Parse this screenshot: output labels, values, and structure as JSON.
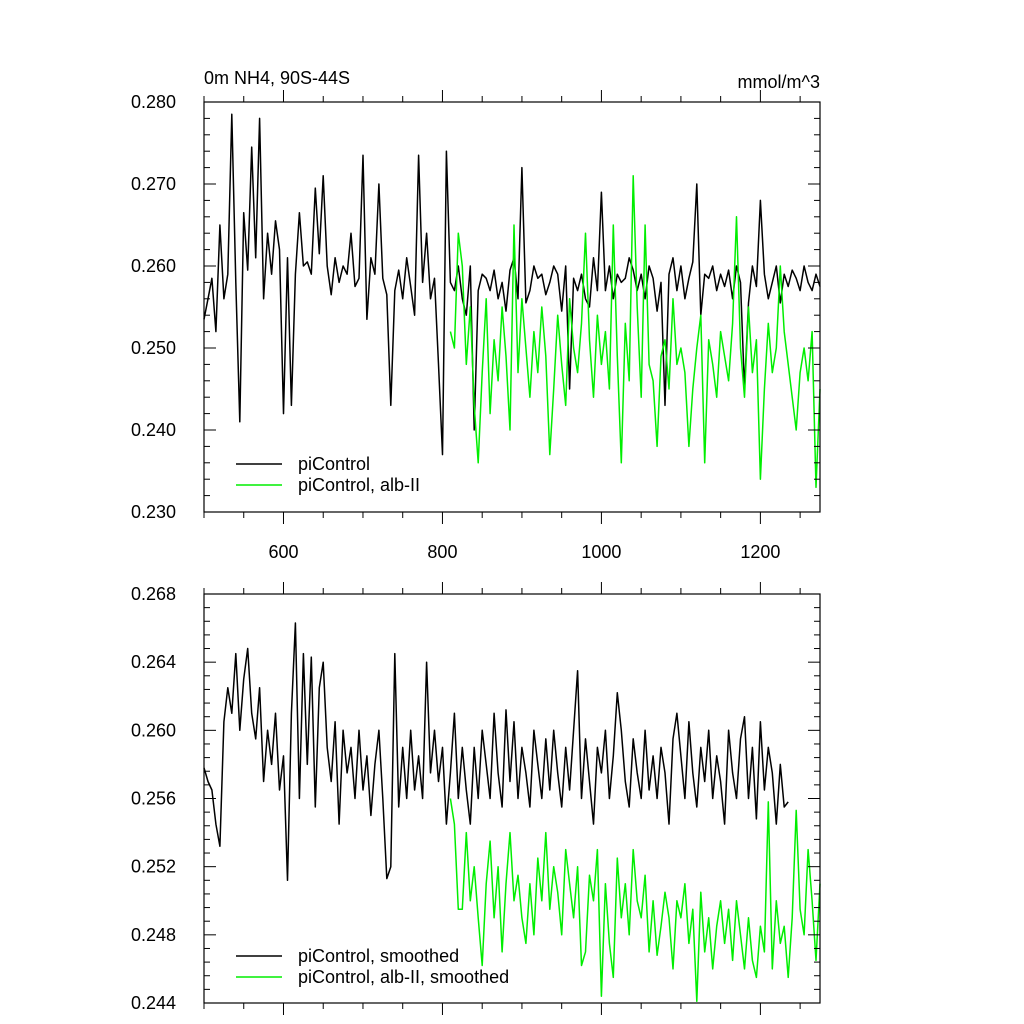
{
  "figure": {
    "title_left": "0m NH4, 90S-44S",
    "title_right": "mmol/m^3"
  },
  "colors": {
    "piControl": "#000000",
    "alb_II": "#00ee00",
    "axis": "#000000",
    "background": "#ffffff"
  },
  "chart_data": [
    {
      "type": "line",
      "panel": "top",
      "title": "0m NH4, 90S-44S",
      "units": "mmol/m^3",
      "xlim": [
        500,
        1275
      ],
      "ylim": [
        0.23,
        0.28
      ],
      "x_ticks": [
        600,
        800,
        1000,
        1200
      ],
      "x_tick_labels": [
        "600",
        "800",
        "1000",
        "1200"
      ],
      "y_ticks": [
        0.23,
        0.24,
        0.25,
        0.26,
        0.27,
        0.28
      ],
      "y_tick_labels": [
        "0.230",
        "0.240",
        "0.250",
        "0.260",
        "0.270",
        "0.280"
      ],
      "grid": false,
      "legend_position": "bottom-left",
      "series": [
        {
          "name": "piControl",
          "color_key": "piControl",
          "x_start": 500,
          "x_step": 5,
          "values": [
            0.2535,
            0.256,
            0.2585,
            0.252,
            0.265,
            0.256,
            0.259,
            0.2625,
            0.258,
            0.2655,
            0.2665,
            0.2595,
            0.27,
            0.261,
            0.263,
            0.256,
            0.264,
            0.259,
            0.2655,
            0.262,
            0.2575,
            0.261,
            0.262,
            0.259,
            0.2665,
            0.26,
            0.2605,
            0.259,
            0.2695,
            0.2615,
            0.258,
            0.26,
            0.2565,
            0.261,
            0.258,
            0.26,
            0.259,
            0.264,
            0.2575,
            0.2585,
            0.26,
            0.2535,
            0.261,
            0.259,
            0.2575,
            0.2585,
            0.2565,
            0.2605,
            0.257,
            0.2595,
            0.256,
            0.261,
            0.2575,
            0.254,
            0.2595,
            0.258,
            0.264,
            0.256,
            0.2585,
            0.2555,
            0.261,
            0.2575,
            0.258,
            0.257,
            0.26,
            0.256,
            0.254,
            0.26,
            0.2605,
            0.257,
            0.259,
            0.2585,
            0.257,
            0.2595,
            0.256,
            0.258,
            0.2545,
            0.2595,
            0.261,
            0.256,
            0.259,
            0.2555,
            0.257,
            0.26,
            0.2585,
            0.259,
            0.2565,
            0.258,
            0.26,
            0.259,
            0.2545,
            0.26,
            0.258,
            0.2585,
            0.257,
            0.259,
            0.256,
            0.255,
            0.261,
            0.257,
            0.258,
            0.257,
            0.26,
            0.256,
            0.259,
            0.258,
            0.2585,
            0.261,
            0.2595,
            0.257,
            0.259,
            0.256,
            0.26,
            0.2585,
            0.2545,
            0.258,
            0.2575,
            0.259,
            0.261,
            0.257,
            0.26,
            0.256,
            0.2585,
            0.2605,
            0.2575,
            0.254,
            0.259,
            0.2585,
            0.26,
            0.257,
            0.259,
            0.2575,
            0.2595,
            0.256,
            0.26,
            0.258,
            0.2585,
            0.2555,
            0.26,
            0.2575,
            0.2585,
            0.259,
            0.256,
            0.258,
            0.26,
            0.2555,
            0.259,
            0.2575,
            0.2595,
            0.2585,
            0.257,
            0.26,
            0.258,
            0.257,
            0.259,
            0.2575,
            0.256,
            0.26,
            0.2585,
            0.2565,
            0.259,
            0.258,
            0.2565,
            0.26,
            0.258
          ],
          "spike_overrides": [
            [
              535,
              0.2785
            ],
            [
              545,
              0.241
            ],
            [
              560,
              0.2745
            ],
            [
              570,
              0.278
            ],
            [
              610,
              0.243
            ],
            [
              650,
              0.271
            ],
            [
              700,
              0.2735
            ],
            [
              720,
              0.27
            ],
            [
              735,
              0.243
            ],
            [
              770,
              0.2735
            ],
            [
              795,
              0.248
            ],
            [
              800,
              0.237
            ],
            [
              805,
              0.274
            ],
            [
              600,
              0.242
            ],
            [
              840,
              0.24
            ],
            [
              900,
              0.272
            ],
            [
              960,
              0.245
            ],
            [
              1000,
              0.269
            ],
            [
              1080,
              0.243
            ],
            [
              1120,
              0.27
            ],
            [
              1180,
              0.245
            ],
            [
              1200,
              0.268
            ]
          ]
        },
        {
          "name": "piControl, alb-II",
          "color_key": "alb_II",
          "x_start": 810,
          "x_step": 5,
          "values": [
            0.252,
            0.25,
            0.245,
            0.26,
            0.248,
            0.255,
            0.243,
            0.254,
            0.247,
            0.256,
            0.242,
            0.251,
            0.246,
            0.255,
            0.249,
            0.24,
            0.253,
            0.247,
            0.256,
            0.25,
            0.244,
            0.252,
            0.247,
            0.255,
            0.249,
            0.252,
            0.245,
            0.254,
            0.248,
            0.243,
            0.256,
            0.25,
            0.247,
            0.253,
            0.246,
            0.251,
            0.244,
            0.254,
            0.248,
            0.252,
            0.245,
            0.256,
            0.249,
            0.247,
            0.253,
            0.246,
            0.25,
            0.255,
            0.244,
            0.252,
            0.248,
            0.246,
            0.254,
            0.249,
            0.251,
            0.245,
            0.256,
            0.248,
            0.25,
            0.247,
            0.253,
            0.245,
            0.25,
            0.254,
            0.246,
            0.251,
            0.248,
            0.244,
            0.252,
            0.249,
            0.246,
            0.253,
            0.248,
            0.25,
            0.244,
            0.255,
            0.247,
            0.251,
            0.249,
            0.245,
            0.253,
            0.247,
            0.25,
            0.246,
            0.252,
            0.248,
            0.244,
            0.251,
            0.247,
            0.25,
            0.246,
            0.252,
            0.248,
            0.245,
            0.25,
            0.247,
            0.253,
            0.246,
            0.249,
            0.251,
            0.245,
            0.25,
            0.247,
            0.253,
            0.248,
            0.246,
            0.251,
            0.244,
            0.25,
            0.247,
            0.252,
            0.248,
            0.246,
            0.251,
            0.247,
            0.244,
            0.252,
            0.249,
            0.246,
            0.25,
            0.248,
            0.243,
            0.251,
            0.247,
            0.249,
            0.245,
            0.253,
            0.248,
            0.246,
            0.25,
            0.252,
            0.247,
            0.249,
            0.244,
            0.252,
            0.248,
            0.246,
            0.25,
            0.247,
            0.253,
            0.249,
            0.245,
            0.251,
            0.247,
            0.25,
            0.246,
            0.252,
            0.248,
            0.244,
            0.25,
            0.247,
            0.252,
            0.248,
            0.246,
            0.25,
            0.247,
            0.253,
            0.249
          ],
          "spike_overrides": [
            [
              820,
              0.264
            ],
            [
              845,
              0.236
            ],
            [
              890,
              0.265
            ],
            [
              935,
              0.237
            ],
            [
              980,
              0.264
            ],
            [
              1015,
              0.265
            ],
            [
              1025,
              0.236
            ],
            [
              1040,
              0.271
            ],
            [
              1055,
              0.265
            ],
            [
              1070,
              0.238
            ],
            [
              1110,
              0.238
            ],
            [
              1130,
              0.236
            ],
            [
              1170,
              0.266
            ],
            [
              1200,
              0.234
            ],
            [
              1225,
              0.26
            ],
            [
              1245,
              0.24
            ],
            [
              1270,
              0.233
            ]
          ]
        }
      ]
    },
    {
      "type": "line",
      "panel": "bottom",
      "xlim": [
        500,
        1275
      ],
      "ylim": [
        0.244,
        0.268
      ],
      "x_ticks": [
        600,
        800,
        1000,
        1200
      ],
      "x_tick_labels": [],
      "y_ticks": [
        0.244,
        0.248,
        0.252,
        0.256,
        0.26,
        0.264,
        0.268
      ],
      "y_tick_labels": [
        "0.244",
        "0.248",
        "0.252",
        "0.256",
        "0.260",
        "0.264",
        "0.268"
      ],
      "grid": false,
      "legend_position": "bottom-left",
      "series": [
        {
          "name": "piControl, smoothed",
          "color_key": "piControl",
          "x_start": 500,
          "x_step": 5,
          "values": [
            0.2578,
            0.257,
            0.256,
            0.2545,
            0.258,
            0.2605,
            0.2625,
            0.261,
            0.264,
            0.26,
            0.263,
            0.2585,
            0.261,
            0.2595,
            0.2625,
            0.257,
            0.26,
            0.258,
            0.261,
            0.2565,
            0.2585,
            0.256,
            0.261,
            0.253,
            0.256,
            0.2645,
            0.258,
            0.261,
            0.2555,
            0.2625,
            0.264,
            0.259,
            0.257,
            0.2605,
            0.2545,
            0.26,
            0.2575,
            0.259,
            0.256,
            0.26,
            0.2565,
            0.2585,
            0.255,
            0.258,
            0.26,
            0.256,
            0.2595,
            0.252,
            0.257,
            0.2555,
            0.259,
            0.256,
            0.26,
            0.2565,
            0.2585,
            0.256,
            0.264,
            0.2575,
            0.26,
            0.257,
            0.259,
            0.2545,
            0.2575,
            0.261,
            0.256,
            0.259,
            0.2565,
            0.2545,
            0.259,
            0.256,
            0.26,
            0.258,
            0.256,
            0.261,
            0.2575,
            0.2555,
            0.259,
            0.257,
            0.2605,
            0.256,
            0.259,
            0.2575,
            0.2555,
            0.26,
            0.258,
            0.256,
            0.2595,
            0.2565,
            0.26,
            0.2575,
            0.2555,
            0.259,
            0.2565,
            0.26,
            0.258,
            0.256,
            0.2595,
            0.257,
            0.2545,
            0.259,
            0.2575,
            0.26,
            0.256,
            0.2585,
            0.2565,
            0.26,
            0.257,
            0.2555,
            0.2595,
            0.2575,
            0.256,
            0.26,
            0.2565,
            0.2585,
            0.256,
            0.259,
            0.2575,
            0.2545,
            0.2595,
            0.257,
            0.2585,
            0.256,
            0.2605,
            0.2575,
            0.2555,
            0.259,
            0.257,
            0.26,
            0.256,
            0.2585,
            0.257,
            0.2545,
            0.26,
            0.2575,
            0.256,
            0.2595,
            0.2575,
            0.256,
            0.259,
            0.257,
            0.2605,
            0.2565,
            0.259,
            0.2575,
            0.2545,
            0.258,
            0.2555,
            0.2558
          ],
          "spike_overrides": [
            [
              510,
              0.2565
            ],
            [
              520,
              0.2532
            ],
            [
              540,
              0.2645
            ],
            [
              555,
              0.2648
            ],
            [
              605,
              0.2512
            ],
            [
              615,
              0.2663
            ],
            [
              635,
              0.2643
            ],
            [
              730,
              0.2513
            ],
            [
              740,
              0.2645
            ],
            [
              880,
              0.2612
            ],
            [
              970,
              0.2635
            ],
            [
              1020,
              0.2622
            ],
            [
              1095,
              0.261
            ],
            [
              1180,
              0.2608
            ],
            [
              1195,
              0.2548
            ]
          ]
        },
        {
          "name": "piControl, alb-II, smoothed",
          "color_key": "alb_II",
          "x_start": 810,
          "x_step": 5,
          "values": [
            0.256,
            0.2545,
            0.2495,
            0.252,
            0.254,
            0.25,
            0.252,
            0.249,
            0.248,
            0.251,
            0.2535,
            0.249,
            0.252,
            0.247,
            0.251,
            0.254,
            0.25,
            0.2515,
            0.249,
            0.253,
            0.251,
            0.248,
            0.2525,
            0.25,
            0.254,
            0.2495,
            0.252,
            0.2505,
            0.248,
            0.253,
            0.251,
            0.249,
            0.252,
            0.2505,
            0.247,
            0.2515,
            0.25,
            0.253,
            0.249,
            0.251,
            0.2475,
            0.2505,
            0.2525,
            0.249,
            0.251,
            0.248,
            0.253,
            0.25,
            0.249,
            0.2515,
            0.247,
            0.25,
            0.252,
            0.2485,
            0.2505,
            0.249,
            0.246,
            0.25,
            0.249,
            0.251,
            0.2475,
            0.2495,
            0.248,
            0.2505,
            0.247,
            0.249,
            0.246,
            0.2485,
            0.25,
            0.2475,
            0.2495,
            0.2465,
            0.25,
            0.248,
            0.246,
            0.249,
            0.247,
            0.2455,
            0.2485,
            0.247,
            0.249,
            0.246,
            0.25,
            0.2475,
            0.2485,
            0.2455,
            0.249,
            0.252,
            0.2495,
            0.248,
            0.253,
            0.25,
            0.247,
            0.251,
            0.254,
            0.249,
            0.252,
            0.255,
            0.25,
            0.247,
            0.249,
            0.2465,
            0.2485,
            0.247,
            0.2495,
            0.251,
            0.253,
            0.2555,
            0.252,
            0.249,
            0.2535,
            0.255,
            0.25,
            0.248,
            0.2525,
            0.251,
            0.249,
            0.2475,
            0.2495,
            0.2465,
            0.2485,
            0.2465
          ],
          "spike_overrides": [
            [
              825,
              0.2495
            ],
            [
              850,
              0.2462
            ],
            [
              905,
              0.2475
            ],
            [
              975,
              0.2462
            ],
            [
              1000,
              0.2444
            ],
            [
              1015,
              0.2455
            ],
            [
              1070,
              0.2468
            ],
            [
              1120,
              0.2441
            ],
            [
              1190,
              0.2465
            ],
            [
              1210,
              0.2558
            ],
            [
              1245,
              0.2553
            ],
            [
              1270,
              0.2465
            ]
          ]
        }
      ]
    }
  ]
}
